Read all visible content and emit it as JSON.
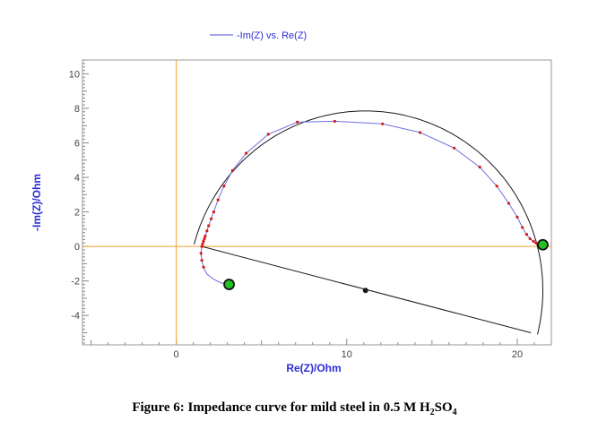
{
  "chart_data": {
    "type": "scatter",
    "legend": {
      "label": "-Im(Z) vs. Re(Z)",
      "placement": "top-center"
    },
    "xlabel": "Re(Z)/Ohm",
    "ylabel": "-Im(Z)/Ohm",
    "xlim": [
      -5.5,
      22
    ],
    "ylim": [
      -5.7,
      10.8
    ],
    "x_ticks": [
      0,
      10,
      20
    ],
    "y_ticks": [
      -4,
      -2,
      0,
      2,
      4,
      6,
      8,
      10
    ],
    "grid": false,
    "origin_crosshair": true,
    "measured_series": {
      "x": [
        1.5,
        1.55,
        1.6,
        1.65,
        1.7,
        1.8,
        1.9,
        2.05,
        2.2,
        2.45,
        2.8,
        3.3,
        4.1,
        5.4,
        7.1,
        9.3,
        12.1,
        14.3,
        16.3,
        17.8,
        18.8,
        19.5,
        20.0,
        20.3,
        20.55,
        20.75,
        20.95,
        21.1,
        21.25
      ],
      "y": [
        0.0,
        0.15,
        0.3,
        0.45,
        0.6,
        0.9,
        1.2,
        1.6,
        2.0,
        2.7,
        3.5,
        4.4,
        5.4,
        6.5,
        7.2,
        7.25,
        7.1,
        6.6,
        5.7,
        4.6,
        3.5,
        2.5,
        1.7,
        1.1,
        0.7,
        0.45,
        0.3,
        0.2,
        0.15
      ]
    },
    "inductive_tail": {
      "x": [
        1.5,
        1.45,
        1.5,
        1.6,
        1.8,
        2.2,
        2.6,
        3.1
      ],
      "y": [
        0.0,
        -0.4,
        -0.8,
        -1.2,
        -1.6,
        -1.9,
        -2.1,
        -2.2
      ]
    },
    "fit_arc": {
      "center": [
        11.1,
        -2.55
      ],
      "radius": 10.4
    },
    "fit_radius_endpoint": [
      20.8,
      -5.0
    ],
    "markers_green": [
      [
        3.1,
        -2.2
      ],
      [
        21.5,
        0.1
      ]
    ],
    "marker_center": [
      11.1,
      -2.55
    ],
    "colors": {
      "axis_labels": "#2b2bd8",
      "crosshair": "#f0a030",
      "measured_line": "#6f6fe0",
      "measured_points": "#d81818",
      "fit": "#1a1a1a",
      "green_marker": "#22c022",
      "frame": "#9a9a9a"
    }
  },
  "caption": {
    "text": "Figure 6: Impedance curve for mild steel in 0.5 M H",
    "sub1": "2",
    "mid": "SO",
    "sub2": "4"
  }
}
